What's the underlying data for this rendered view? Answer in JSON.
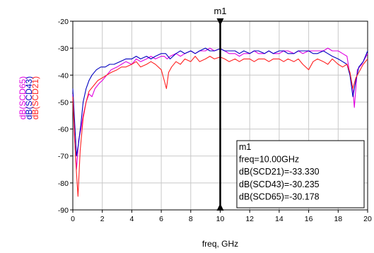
{
  "chart_data": {
    "type": "line",
    "xlabel": "freq, GHz",
    "xlim": [
      0,
      20
    ],
    "ylim": [
      -90,
      -20
    ],
    "xticks": [
      "0",
      "2",
      "4",
      "6",
      "8",
      "10",
      "12",
      "14",
      "16",
      "18",
      "20"
    ],
    "yticks": [
      "-20",
      "-30",
      "-40",
      "-50",
      "-60",
      "-70",
      "-80",
      "-90"
    ],
    "grid": true,
    "legend": "rotated y-axis labels",
    "series": [
      {
        "name": "dB(SCD65)",
        "color": "#e000e0",
        "x": [
          0,
          0.1,
          0.25,
          0.4,
          0.55,
          0.7,
          0.9,
          1.1,
          1.3,
          1.5,
          1.8,
          2.0,
          2.3,
          2.6,
          3.0,
          3.3,
          3.6,
          4.0,
          4.3,
          4.6,
          5.0,
          5.3,
          5.6,
          6.0,
          6.2,
          6.4,
          6.6,
          7.0,
          7.3,
          7.6,
          8.0,
          8.3,
          8.6,
          9.0,
          9.3,
          9.6,
          10.0,
          10.3,
          10.6,
          11.0,
          11.3,
          11.6,
          12.0,
          12.3,
          12.6,
          13.0,
          13.3,
          13.6,
          14.0,
          14.3,
          14.6,
          15.0,
          15.3,
          15.6,
          16.0,
          16.3,
          16.6,
          17.0,
          17.3,
          17.6,
          18.0,
          18.3,
          18.6,
          18.8,
          19.0,
          19.1,
          19.3,
          19.6,
          20.0
        ],
        "y": [
          -47,
          -62,
          -75,
          -64,
          -60,
          -55,
          -50,
          -47,
          -48,
          -45,
          -43,
          -42,
          -40,
          -38,
          -37,
          -36,
          -35,
          -36,
          -34,
          -35,
          -34,
          -33,
          -34,
          -33,
          -33,
          -34,
          -33,
          -32,
          -33,
          -32,
          -31,
          -32,
          -31,
          -31,
          -30,
          -31,
          -30.2,
          -31,
          -32,
          -32,
          -33,
          -32,
          -32,
          -31,
          -32,
          -32,
          -31,
          -32,
          -32,
          -31,
          -31,
          -32,
          -31,
          -32,
          -31,
          -31,
          -31,
          -31,
          -30,
          -31,
          -31,
          -32,
          -33,
          -40,
          -45,
          -52,
          -38,
          -36,
          -32
        ]
      },
      {
        "name": "dB(SCD43)",
        "color": "#0000c0",
        "x": [
          0,
          0.1,
          0.25,
          0.4,
          0.55,
          0.7,
          0.9,
          1.1,
          1.3,
          1.6,
          1.9,
          2.2,
          2.5,
          2.8,
          3.2,
          3.6,
          4.0,
          4.3,
          4.6,
          5.0,
          5.3,
          5.6,
          6.0,
          6.3,
          6.6,
          7.0,
          7.3,
          7.6,
          8.0,
          8.3,
          8.6,
          9.0,
          9.3,
          9.6,
          10.0,
          10.3,
          10.6,
          11.0,
          11.3,
          11.6,
          12.0,
          12.3,
          12.6,
          13.0,
          13.3,
          13.6,
          14.0,
          14.3,
          14.6,
          15.0,
          15.3,
          15.6,
          16.0,
          16.3,
          16.6,
          17.0,
          17.3,
          17.6,
          18.0,
          18.3,
          18.6,
          18.8,
          19.0,
          19.2,
          19.4,
          19.7,
          20.0
        ],
        "y": [
          -45,
          -55,
          -70,
          -65,
          -58,
          -50,
          -45,
          -42,
          -40,
          -38,
          -37,
          -37,
          -36,
          -36,
          -35,
          -34,
          -34,
          -33,
          -34,
          -33,
          -34,
          -33,
          -32,
          -32,
          -34,
          -32,
          -31,
          -32,
          -31,
          -32,
          -31,
          -30,
          -31,
          -31,
          -30.2,
          -31,
          -31,
          -31,
          -32,
          -31,
          -32,
          -31,
          -31,
          -32,
          -31,
          -32,
          -31,
          -31,
          -32,
          -32,
          -31,
          -31,
          -31,
          -32,
          -32,
          -31,
          -32,
          -33,
          -34,
          -35,
          -36,
          -40,
          -48,
          -42,
          -37,
          -35,
          -31
        ]
      },
      {
        "name": "dB(SCD21)",
        "color": "#ff2020",
        "x": [
          0,
          0.1,
          0.2,
          0.35,
          0.5,
          0.7,
          0.9,
          1.1,
          1.4,
          1.7,
          2.0,
          2.3,
          2.6,
          3.0,
          3.3,
          3.6,
          4.0,
          4.3,
          4.6,
          5.0,
          5.3,
          5.6,
          6.0,
          6.2,
          6.35,
          6.5,
          6.7,
          7.0,
          7.3,
          7.6,
          8.0,
          8.3,
          8.6,
          9.0,
          9.3,
          9.6,
          10.0,
          10.3,
          10.6,
          11.0,
          11.3,
          11.6,
          12.0,
          12.3,
          12.6,
          13.0,
          13.3,
          13.6,
          14.0,
          14.3,
          14.6,
          15.0,
          15.3,
          15.6,
          16.0,
          16.3,
          16.6,
          17.0,
          17.3,
          17.6,
          18.0,
          18.3,
          18.6,
          18.8,
          19.0,
          19.2,
          19.4,
          19.7,
          20.0
        ],
        "y": [
          -48,
          -60,
          -72,
          -85,
          -68,
          -56,
          -50,
          -46,
          -44,
          -42,
          -41,
          -40,
          -39,
          -38,
          -37,
          -37,
          -36,
          -35,
          -37,
          -36,
          -35,
          -36,
          -38,
          -42,
          -45,
          -39,
          -37,
          -35,
          -36,
          -34,
          -35,
          -33,
          -35,
          -34,
          -33,
          -34,
          -33.3,
          -34,
          -35,
          -34,
          -35,
          -34,
          -34,
          -35,
          -34,
          -34,
          -35,
          -34,
          -34,
          -35,
          -34,
          -35,
          -34,
          -36,
          -38,
          -35,
          -34,
          -35,
          -36,
          -34,
          -36,
          -37,
          -36,
          -39,
          -45,
          -41,
          -39,
          -36,
          -34
        ]
      }
    ],
    "marker": {
      "title": "m1",
      "x": 10,
      "info": [
        "m1",
        "freq=10.00GHz",
        "dB(SCD21)=-33.330",
        "dB(SCD43)=-30.235",
        "dB(SCD65)=-30.178"
      ]
    }
  }
}
